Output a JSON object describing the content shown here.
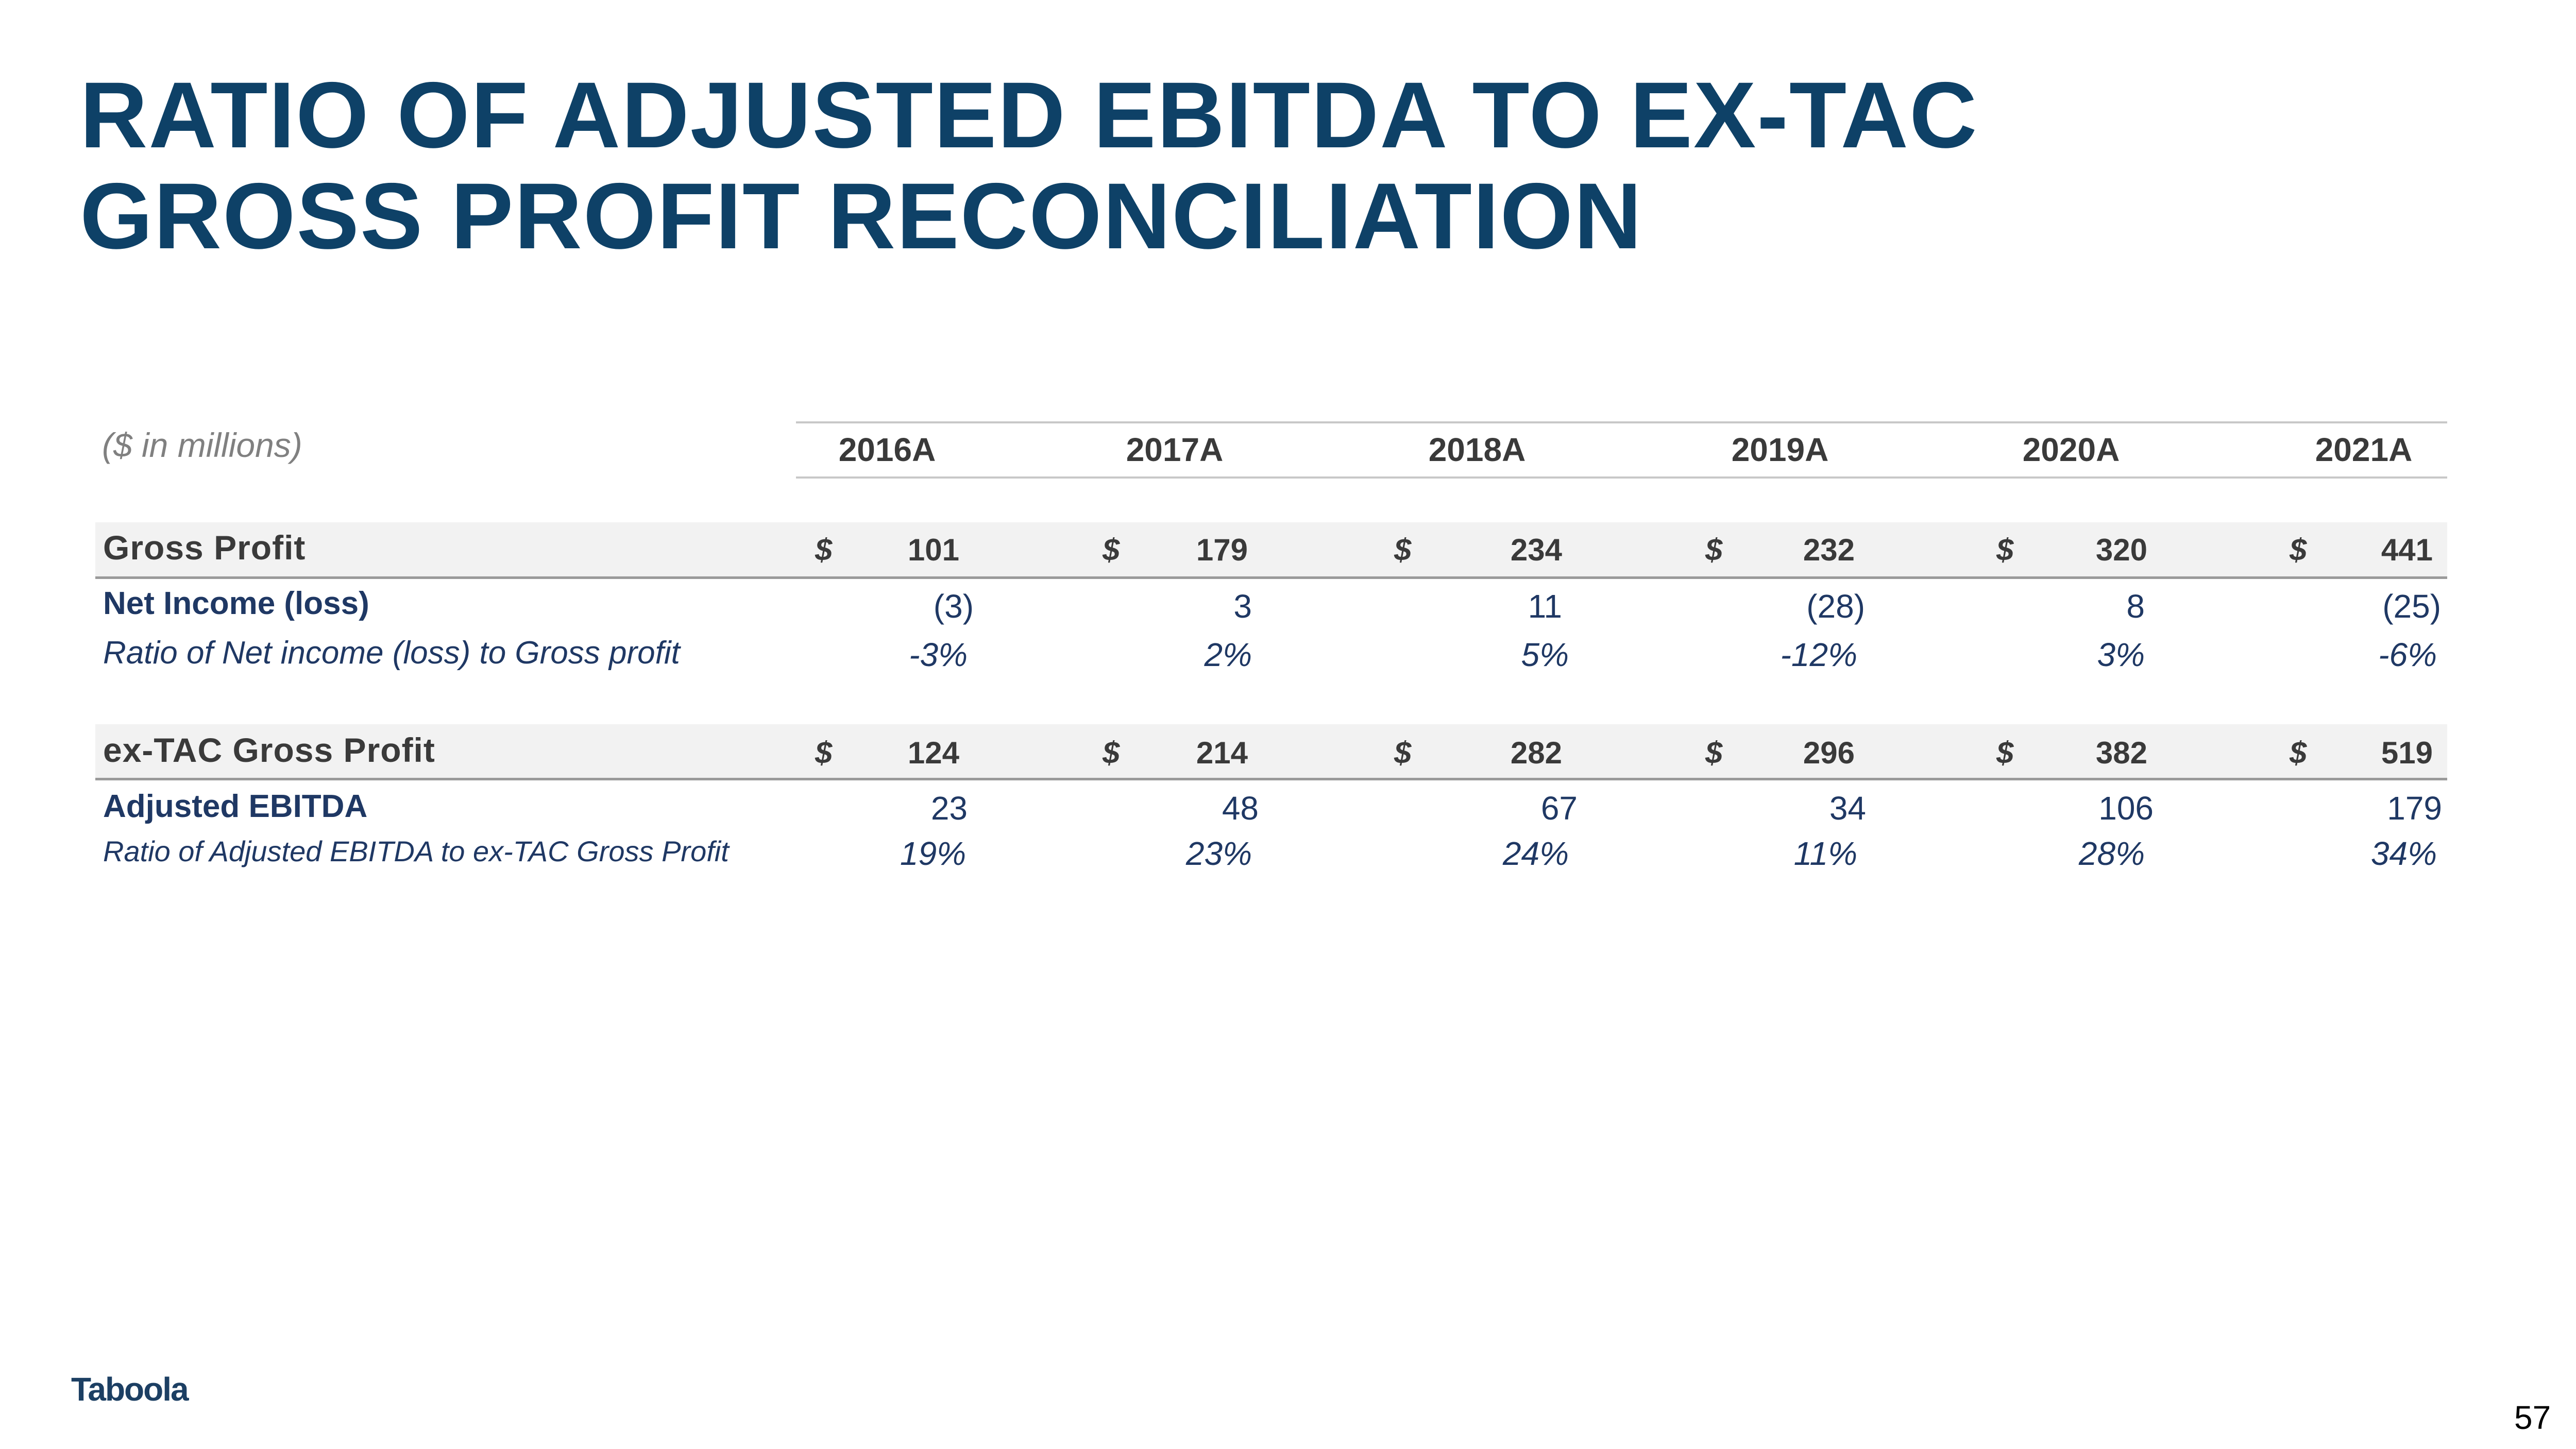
{
  "title": {
    "line1": "RATIO OF ADJUSTED EBITDA TO EX-TAC",
    "line2": "GROSS PROFIT RECONCILIATION"
  },
  "table": {
    "units": "($ in millions)",
    "years": [
      "2016A",
      "2017A",
      "2018A",
      "2019A",
      "2020A",
      "2021A"
    ],
    "currency_symbol": "$",
    "gross_profit": {
      "label": "Gross Profit",
      "values": [
        "101",
        "179",
        "234",
        "232",
        "320",
        "441"
      ]
    },
    "net_income": {
      "label": "Net Income (loss)",
      "values": [
        "(3)",
        "3",
        "11",
        "(28)",
        "8",
        "(25)"
      ]
    },
    "ratio_net_income": {
      "label": "Ratio of Net income (loss) to Gross profit",
      "values": [
        "-3%",
        "2%",
        "5%",
        "-12%",
        "3%",
        "-6%"
      ]
    },
    "ex_tac_gross_profit": {
      "label": "ex-TAC Gross Profit",
      "values": [
        "124",
        "214",
        "282",
        "296",
        "382",
        "519"
      ]
    },
    "adjusted_ebitda": {
      "label": "Adjusted EBITDA",
      "values": [
        "23",
        "48",
        "67",
        "34",
        "106",
        "179"
      ]
    },
    "ratio_adjusted_ebitda": {
      "label": "Ratio of Adjusted EBITDA to ex-TAC Gross Profit",
      "values": [
        "19%",
        "23%",
        "24%",
        "11%",
        "28%",
        "34%"
      ]
    }
  },
  "footer": {
    "logo_text": "Taboola",
    "page_number": "57"
  },
  "colors": {
    "title": "#0e4167",
    "label_blue": "#1f3864",
    "band_gray": "#f2f2f2",
    "logo": "#1c3f63"
  }
}
